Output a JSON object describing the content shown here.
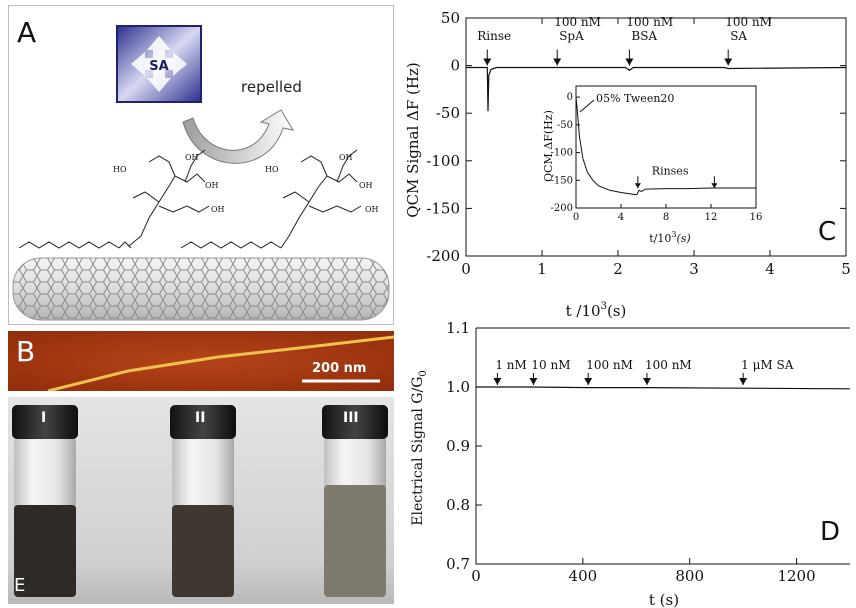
{
  "panel_a": {
    "letter": "A",
    "molecule_label": "SA",
    "repelled_label": "repelled",
    "chem_labels": [
      "HO",
      "OH",
      "OH",
      "OH",
      "HO",
      "OH",
      "OH",
      "OH"
    ]
  },
  "panel_b": {
    "letter": "B",
    "scale_label": "200 nm"
  },
  "panel_e": {
    "letter": "E",
    "vial_labels": [
      "I",
      "II",
      "III"
    ]
  },
  "chart_data": [
    {
      "type": "line",
      "panel_letter": "C",
      "xlabel_main": "t /10",
      "xlabel_sup": "3",
      "xlabel_unit": "(s)",
      "ylabel": "QCM Signal ΔF (Hz)",
      "xlim": [
        0,
        5
      ],
      "ylim": [
        -200,
        50
      ],
      "xticks": [
        "0",
        "1",
        "2",
        "3",
        "4",
        "5"
      ],
      "yticks": [
        "50",
        "0",
        "-50",
        "-100",
        "-150",
        "-200"
      ],
      "grid": false,
      "series": [
        {
          "values": [
            [
              0.0,
              -2
            ],
            [
              0.25,
              -2
            ],
            [
              0.28,
              -2
            ],
            [
              0.29,
              -48
            ],
            [
              0.3,
              -10
            ],
            [
              0.33,
              -4
            ],
            [
              0.4,
              -2
            ],
            [
              1.2,
              -2
            ],
            [
              2.1,
              -2
            ],
            [
              2.15,
              -5
            ],
            [
              2.2,
              -2
            ],
            [
              3.4,
              -2
            ],
            [
              3.45,
              -3
            ],
            [
              5.0,
              -2
            ]
          ]
        }
      ],
      "annotations": [
        {
          "text": "Rinse",
          "x": 0.28
        },
        {
          "text": "100 nM SpA",
          "line1": "100 nM",
          "line2": "SpA",
          "x": 1.2
        },
        {
          "text": "100 nM BSA",
          "line1": "100 nM",
          "line2": "BSA",
          "x": 2.15
        },
        {
          "text": "100 nM SA",
          "line1": "100 nM",
          "line2": "SA",
          "x": 3.45
        }
      ],
      "inset": {
        "type": "line",
        "xlabel_main": "t/10",
        "xlabel_sup": "3",
        "xlabel_unit": "(s)",
        "ylabel": "QCM ΔF(Hz)",
        "xlim": [
          0,
          16
        ],
        "ylim": [
          -200,
          20
        ],
        "xticks": [
          "0",
          "4",
          "8",
          "12",
          "16"
        ],
        "yticks": [
          "0",
          "-50",
          "-100",
          "-150",
          "-200"
        ],
        "series": [
          {
            "values": [
              [
                0,
                0
              ],
              [
                0.1,
                -20
              ],
              [
                0.3,
                -70
              ],
              [
                0.6,
                -110
              ],
              [
                1.0,
                -135
              ],
              [
                1.5,
                -150
              ],
              [
                2,
                -160
              ],
              [
                3,
                -168
              ],
              [
                4,
                -172
              ],
              [
                5,
                -175
              ],
              [
                5.4,
                -176
              ],
              [
                5.6,
                -168
              ],
              [
                5.8,
                -170
              ],
              [
                6.2,
                -166
              ],
              [
                8,
                -165
              ],
              [
                10,
                -165
              ],
              [
                12,
                -164
              ],
              [
                12.3,
                -164
              ],
              [
                14,
                -164
              ],
              [
                16,
                -164
              ]
            ]
          }
        ],
        "annotations": [
          {
            "text": "05% Tween20",
            "x": 0
          },
          {
            "text": "Rinses",
            "x1": 5.5,
            "x2": 12.3
          }
        ]
      }
    },
    {
      "type": "line",
      "panel_letter": "D",
      "xlabel": "t (s)",
      "ylabel_main": "Electrical Signal G/G",
      "ylabel_sub": "0",
      "xlim": [
        0,
        1400
      ],
      "ylim": [
        0.7,
        1.1
      ],
      "xticks": [
        "0",
        "400",
        "800",
        "1200"
      ],
      "yticks": [
        "0.7",
        "0.8",
        "0.9",
        "1.0",
        "1.1"
      ],
      "grid": false,
      "series": [
        {
          "values": [
            [
              0,
              1.0
            ],
            [
              200,
              1.0
            ],
            [
              420,
              0.999
            ],
            [
              640,
              0.999
            ],
            [
              1000,
              0.998
            ],
            [
              1400,
              0.997
            ]
          ]
        }
      ],
      "annotations": [
        {
          "text": "1 nM",
          "x": 80
        },
        {
          "text": "10 nM",
          "x": 215
        },
        {
          "text": "100 nM",
          "x": 420
        },
        {
          "text": "100 nM",
          "x": 640
        },
        {
          "text": "1 μM SA",
          "x": 1000
        }
      ]
    }
  ]
}
